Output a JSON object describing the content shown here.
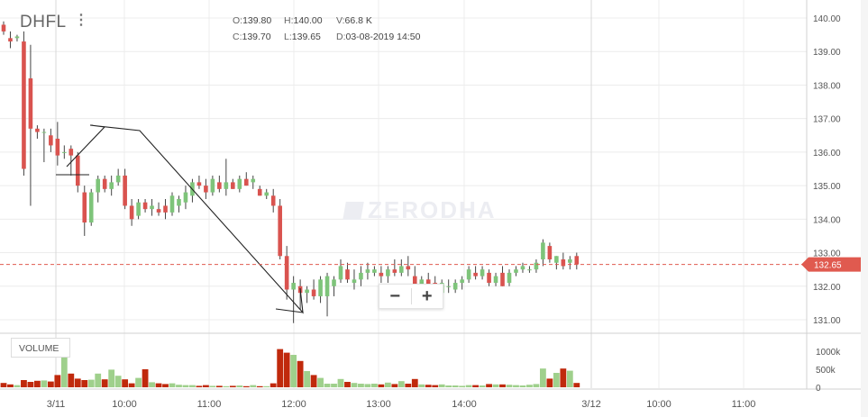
{
  "header": {
    "symbol": "DHFL",
    "ohlc": {
      "o_label": "O:",
      "o": "139.80",
      "h_label": "H:",
      "h": "140.00",
      "v_label": "V:",
      "v": "66.8 K",
      "c_label": "C:",
      "c": "139.70",
      "l_label": "L:",
      "l": "139.65",
      "d_label": "D:",
      "d": "03-08-2019 14:50"
    }
  },
  "watermark": "ZERODHA",
  "volume_label": "VOLUME",
  "zoom": {
    "minus": "−",
    "plus": "+"
  },
  "colors": {
    "up": "#7ec47a",
    "down": "#d9534f",
    "vol_up": "#9fd08c",
    "vol_down": "#c0290c",
    "last": "#e05a4f"
  },
  "chart_data": {
    "type": "candlestick",
    "y_axis": {
      "ticks": [
        131,
        132,
        133,
        134,
        135,
        136,
        137,
        138,
        139,
        140
      ],
      "tick_labels": [
        "131.00",
        "132.00",
        "133.00",
        "134.00",
        "135.00",
        "136.00",
        "137.00",
        "138.00",
        "139.00",
        "140.00"
      ],
      "range": [
        130.7,
        140.2
      ]
    },
    "x_axis": {
      "tick_labels": [
        "3/11",
        "10:00",
        "11:00",
        "12:00",
        "13:00",
        "14:00",
        "3/12",
        "10:00",
        "11:00"
      ]
    },
    "volume_axis": {
      "ticks": [
        0,
        500000,
        1000000
      ],
      "tick_labels": [
        "0",
        "500k",
        "1000k"
      ]
    },
    "last_price": "132.65",
    "candles": [
      [
        139.8,
        139.9,
        139.5,
        139.6
      ],
      [
        139.4,
        139.6,
        139.1,
        139.3
      ],
      [
        139.4,
        139.5,
        139.3,
        139.45
      ],
      [
        139.3,
        139.6,
        135.3,
        135.5
      ],
      [
        138.2,
        139.2,
        134.4,
        136.7
      ],
      [
        136.7,
        136.8,
        136.4,
        136.6
      ],
      [
        136.6,
        136.7,
        135.7,
        136.6
      ],
      [
        136.5,
        136.7,
        136.0,
        136.2
      ],
      [
        136.4,
        136.9,
        135.6,
        135.9
      ],
      [
        136.0,
        136.2,
        135.8,
        136.0
      ],
      [
        136.1,
        136.2,
        135.3,
        135.9
      ],
      [
        135.9,
        136.0,
        134.8,
        135.0
      ],
      [
        134.8,
        135.0,
        133.5,
        133.9
      ],
      [
        133.9,
        134.9,
        133.8,
        134.8
      ],
      [
        134.8,
        135.3,
        134.5,
        135.2
      ],
      [
        135.2,
        135.3,
        134.8,
        134.9
      ],
      [
        134.9,
        135.3,
        134.7,
        135.1
      ],
      [
        135.1,
        135.5,
        135.0,
        135.3
      ],
      [
        135.3,
        135.5,
        134.3,
        134.4
      ],
      [
        134.4,
        134.6,
        133.8,
        134.0
      ],
      [
        134.1,
        134.6,
        134.0,
        134.5
      ],
      [
        134.5,
        134.6,
        134.2,
        134.3
      ],
      [
        134.3,
        134.6,
        134.1,
        134.4
      ],
      [
        134.3,
        134.5,
        134.1,
        134.2
      ],
      [
        134.4,
        134.6,
        134.0,
        134.2
      ],
      [
        134.2,
        134.8,
        134.1,
        134.7
      ],
      [
        134.4,
        134.7,
        134.2,
        134.6
      ],
      [
        134.5,
        135.0,
        134.3,
        134.8
      ],
      [
        134.7,
        135.2,
        134.5,
        135.1
      ],
      [
        135.1,
        135.3,
        134.9,
        135.0
      ],
      [
        135.0,
        135.2,
        134.6,
        134.8
      ],
      [
        134.8,
        135.3,
        134.7,
        135.2
      ],
      [
        135.1,
        135.3,
        134.8,
        134.9
      ],
      [
        134.9,
        135.8,
        134.7,
        135.1
      ],
      [
        135.1,
        135.2,
        134.9,
        134.9
      ],
      [
        134.9,
        135.3,
        134.8,
        135.2
      ],
      [
        135.2,
        135.4,
        135.0,
        135.0
      ],
      [
        135.1,
        135.3,
        134.9,
        135.2
      ],
      [
        134.9,
        135.0,
        134.7,
        134.7
      ],
      [
        134.7,
        134.9,
        134.6,
        134.8
      ],
      [
        134.7,
        134.9,
        134.2,
        134.4
      ],
      [
        134.4,
        134.6,
        132.8,
        132.9
      ],
      [
        132.9,
        133.2,
        131.6,
        131.9
      ],
      [
        131.9,
        132.3,
        130.9,
        132.1
      ],
      [
        132.0,
        132.2,
        131.3,
        131.8
      ],
      [
        131.8,
        132.0,
        131.5,
        131.9
      ],
      [
        131.9,
        132.2,
        131.6,
        131.7
      ],
      [
        131.7,
        132.3,
        131.5,
        132.2
      ],
      [
        131.7,
        132.4,
        131.1,
        132.3
      ],
      [
        132.0,
        132.3,
        131.7,
        132.2
      ],
      [
        132.2,
        132.8,
        132.1,
        132.6
      ],
      [
        132.5,
        132.7,
        132.1,
        132.2
      ],
      [
        132.1,
        132.5,
        131.9,
        132.2
      ],
      [
        132.2,
        132.6,
        132.0,
        132.4
      ],
      [
        132.4,
        132.7,
        132.2,
        132.5
      ],
      [
        132.4,
        132.6,
        132.3,
        132.5
      ],
      [
        132.4,
        132.6,
        132.1,
        132.3
      ],
      [
        132.3,
        132.6,
        132.1,
        132.5
      ],
      [
        132.5,
        132.8,
        132.3,
        132.4
      ],
      [
        132.4,
        132.8,
        132.3,
        132.6
      ],
      [
        132.6,
        132.9,
        132.3,
        132.5
      ],
      [
        132.3,
        132.6,
        131.9,
        132.0
      ],
      [
        132.0,
        132.3,
        131.8,
        132.2
      ],
      [
        132.2,
        132.4,
        131.9,
        132.0
      ],
      [
        132.1,
        132.3,
        131.7,
        131.8
      ],
      [
        131.8,
        132.2,
        131.6,
        132.1
      ],
      [
        132.0,
        132.2,
        131.8,
        132.0
      ],
      [
        131.9,
        132.2,
        131.8,
        132.1
      ],
      [
        132.1,
        132.3,
        131.9,
        132.2
      ],
      [
        132.2,
        132.6,
        132.1,
        132.5
      ],
      [
        132.4,
        132.6,
        132.2,
        132.3
      ],
      [
        132.3,
        132.6,
        132.2,
        132.5
      ],
      [
        132.4,
        132.5,
        132.0,
        132.1
      ],
      [
        132.1,
        132.4,
        132.0,
        132.3
      ],
      [
        132.4,
        132.6,
        132.0,
        132.0
      ],
      [
        132.1,
        132.5,
        132.0,
        132.4
      ],
      [
        132.4,
        132.6,
        132.3,
        132.5
      ],
      [
        132.5,
        132.7,
        132.4,
        132.6
      ],
      [
        132.5,
        132.6,
        132.4,
        132.5
      ],
      [
        132.5,
        132.8,
        132.4,
        132.7
      ],
      [
        132.8,
        133.4,
        132.6,
        133.3
      ],
      [
        133.2,
        133.3,
        132.7,
        132.8
      ],
      [
        132.7,
        132.9,
        132.5,
        132.9
      ],
      [
        132.8,
        133.0,
        132.5,
        132.6
      ],
      [
        132.7,
        132.9,
        132.5,
        132.8
      ],
      [
        132.9,
        133.0,
        132.5,
        132.65
      ]
    ],
    "volume": [
      120000,
      80000,
      60000,
      200000,
      150000,
      180000,
      190000,
      160000,
      340000,
      1280000,
      380000,
      240000,
      200000,
      210000,
      380000,
      220000,
      490000,
      320000,
      220000,
      110000,
      260000,
      500000,
      140000,
      110000,
      90000,
      110000,
      70000,
      60000,
      60000,
      40000,
      60000,
      40000,
      40000,
      30000,
      40000,
      50000,
      30000,
      60000,
      30000,
      30000,
      110000,
      1060000,
      960000,
      900000,
      730000,
      450000,
      340000,
      260000,
      100000,
      100000,
      230000,
      150000,
      120000,
      100000,
      90000,
      100000,
      80000,
      130000,
      90000,
      170000,
      100000,
      230000,
      80000,
      70000,
      60000,
      80000,
      50000,
      50000,
      40000,
      60000,
      60000,
      50000,
      90000,
      80000,
      80000,
      70000,
      60000,
      50000,
      70000,
      90000,
      520000,
      240000,
      400000,
      520000,
      460000,
      120000
    ]
  }
}
